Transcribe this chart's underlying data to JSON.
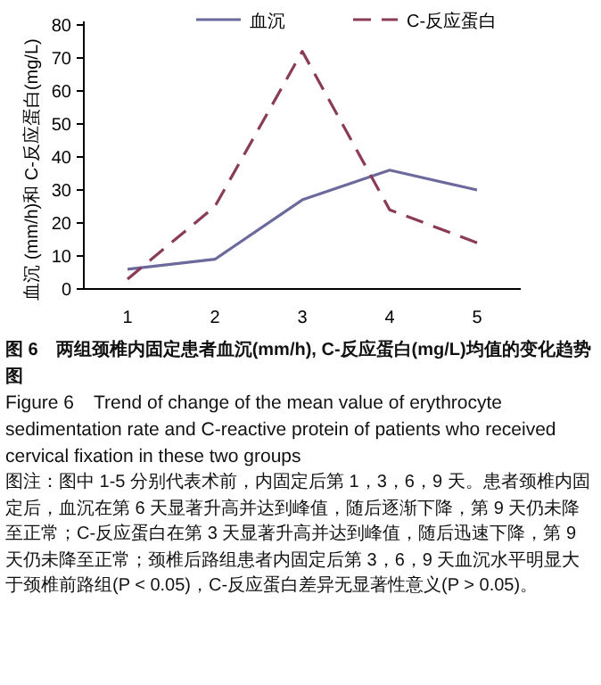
{
  "chart_data": {
    "type": "line",
    "title": "图 6　两组颈椎内固定患者血沉(mm/h), C-反应蛋白(mg/L)均值的变化趋势图",
    "subtitle": "Figure 6　Trend of change of the mean value of erythrocyte sedimentation rate and C-reactive protein of patients who received cervical fixation in these two groups",
    "annotations": [
      "图注：图中 1-5 分别代表术前，内固定后第 1，3，6，9 天。患者颈椎内固定后，血沉在第 6 天显著升高并达到峰值，随后逐渐下降，第 9 天仍未降至正常；C-反应蛋白在第 3 天显著升高并达到峰值，随后迅速下降，第 9 天仍未降至正常；颈椎后路组患者内固定后第 3，6，9 天血沉水平明显大于颈椎前路组(P < 0.05)，C-反应蛋白差异无显著性意义(P > 0.05)。"
    ],
    "ylabel": "血沉 (mm/h)和 C-反应蛋白(mg/L)",
    "categories": [
      "1",
      "2",
      "3",
      "4",
      "5"
    ],
    "series": [
      {
        "name": "血沉",
        "color": "#6c6a9c",
        "line_style": "solid",
        "values": [
          6,
          9,
          27,
          36,
          30
        ]
      },
      {
        "name": "C-反应蛋白",
        "color": "#8a3b58",
        "line_style": "dashed",
        "values": [
          3,
          25,
          72,
          24,
          14
        ]
      }
    ],
    "ylim": [
      0,
      80
    ],
    "yticks": [
      0,
      10,
      20,
      30,
      40,
      50,
      60,
      70,
      80
    ],
    "grid": false,
    "legend": "top",
    "marker": "none"
  }
}
